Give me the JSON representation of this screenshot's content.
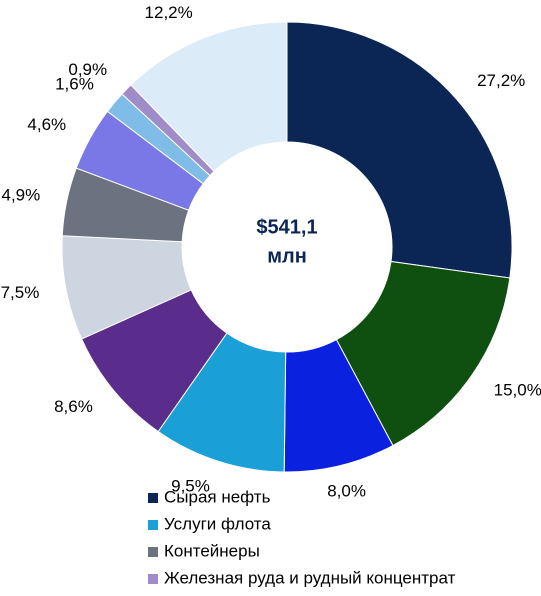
{
  "chart_data": {
    "type": "donut",
    "center_label": [
      "$541,1",
      "млн"
    ],
    "categories": [
      "Сырая нефть",
      null,
      null,
      "Услуги флота",
      null,
      null,
      "Контейнеры",
      null,
      null,
      "Железная руда и рудный концентрат",
      null
    ],
    "values": [
      27.2,
      15.0,
      8.0,
      9.5,
      8.6,
      7.5,
      4.9,
      4.6,
      1.6,
      0.9,
      12.2
    ],
    "value_labels": [
      "27,2%",
      "15,0%",
      "8,0%",
      "9,5%",
      "8,6%",
      "7,5%",
      "4,9%",
      "4,6%",
      "1,6%",
      "0,9%",
      "12,2%"
    ],
    "colors": [
      "#0b2655",
      "#0f5010",
      "#0a22e0",
      "#1a9fd6",
      "#5a2d8c",
      "#cdd5e0",
      "#6d7280",
      "#7a78e6",
      "#7fbde8",
      "#a08cc8",
      "#dcebf8"
    ],
    "legend": "bottom"
  }
}
